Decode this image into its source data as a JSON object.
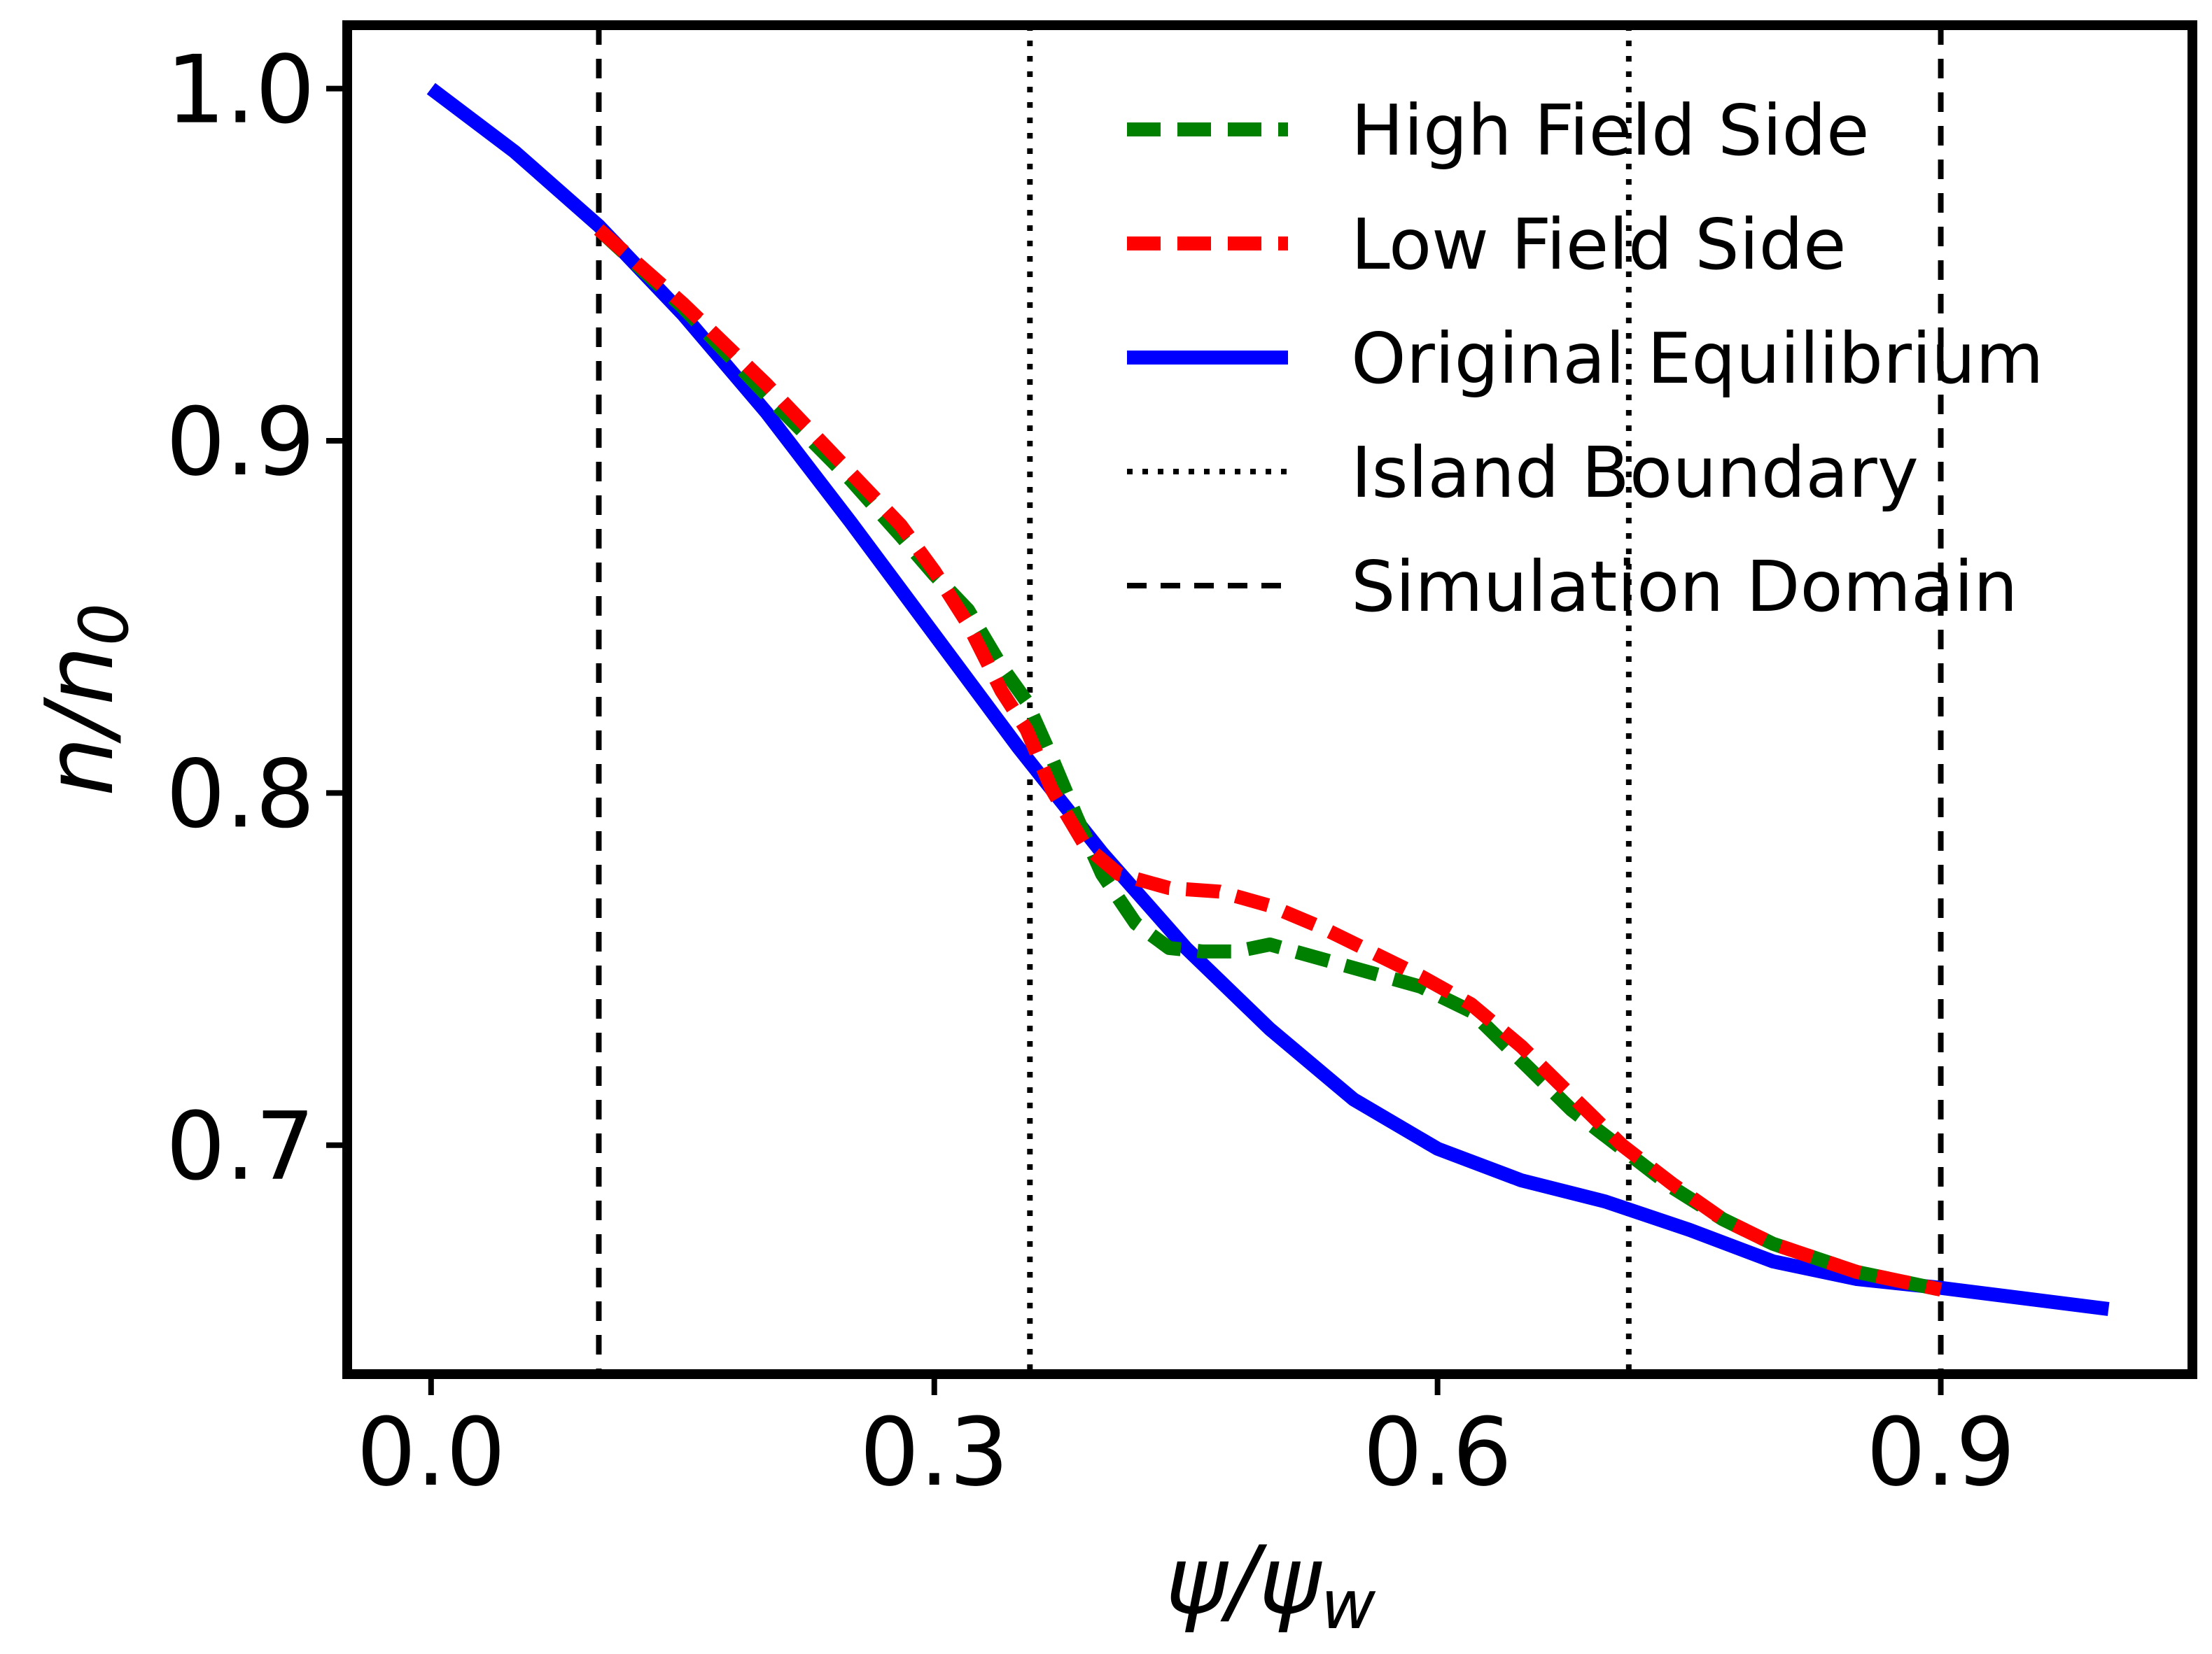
{
  "chart_data": {
    "type": "line",
    "title": "",
    "xlabel": "ψ/ψw",
    "ylabel": "n/n0",
    "xlabel_parts": {
      "base": "ψ/ψ",
      "sub": "w"
    },
    "ylabel_parts": {
      "base": "n/n",
      "sub": "0"
    },
    "xlim": [
      -0.05,
      1.05
    ],
    "ylim": [
      0.635,
      1.018
    ],
    "xticks": [
      0.0,
      0.3,
      0.6,
      0.9
    ],
    "xtick_labels": [
      "0.0",
      "0.3",
      "0.6",
      "0.9"
    ],
    "yticks": [
      0.7,
      0.8,
      0.9,
      1.0
    ],
    "ytick_labels": [
      "0.7",
      "0.8",
      "0.9",
      "1.0"
    ],
    "grid": false,
    "legend_position": "top-right",
    "series": [
      {
        "name": "High Field Side",
        "style": "dashed",
        "color": "#008000",
        "x": [
          0.1,
          0.15,
          0.2,
          0.25,
          0.28,
          0.3,
          0.32,
          0.34,
          0.355,
          0.37,
          0.385,
          0.4,
          0.42,
          0.44,
          0.46,
          0.48,
          0.5,
          0.53,
          0.56,
          0.59,
          0.62,
          0.65,
          0.68,
          0.71,
          0.74,
          0.77,
          0.8,
          0.85,
          0.9
        ],
        "y": [
          0.96,
          0.938,
          0.913,
          0.889,
          0.873,
          0.862,
          0.852,
          0.836,
          0.826,
          0.81,
          0.793,
          0.777,
          0.763,
          0.756,
          0.755,
          0.755,
          0.757,
          0.753,
          0.749,
          0.745,
          0.738,
          0.724,
          0.71,
          0.699,
          0.688,
          0.679,
          0.672,
          0.664,
          0.659
        ]
      },
      {
        "name": "Low Field Side",
        "style": "dashed",
        "color": "#ff0000",
        "x": [
          0.1,
          0.15,
          0.2,
          0.25,
          0.28,
          0.3,
          0.32,
          0.34,
          0.355,
          0.37,
          0.39,
          0.41,
          0.44,
          0.47,
          0.5,
          0.53,
          0.56,
          0.59,
          0.62,
          0.65,
          0.68,
          0.71,
          0.74,
          0.77,
          0.8,
          0.85,
          0.9
        ],
        "y": [
          0.96,
          0.939,
          0.916,
          0.891,
          0.876,
          0.863,
          0.848,
          0.829,
          0.818,
          0.801,
          0.785,
          0.777,
          0.773,
          0.772,
          0.768,
          0.762,
          0.755,
          0.748,
          0.74,
          0.728,
          0.714,
          0.7,
          0.689,
          0.679,
          0.672,
          0.664,
          0.659
        ]
      },
      {
        "name": "Original Equilibrium",
        "style": "solid",
        "color": "#0000ff",
        "x": [
          0.0,
          0.05,
          0.1,
          0.15,
          0.2,
          0.25,
          0.3,
          0.35,
          0.4,
          0.45,
          0.5,
          0.55,
          0.6,
          0.65,
          0.7,
          0.75,
          0.8,
          0.85,
          0.9,
          0.95,
          1.0
        ],
        "y": [
          1.0,
          0.982,
          0.961,
          0.936,
          0.908,
          0.877,
          0.845,
          0.813,
          0.783,
          0.756,
          0.733,
          0.713,
          0.699,
          0.69,
          0.684,
          0.676,
          0.667,
          0.662,
          0.6595,
          0.6565,
          0.6535
        ]
      }
    ],
    "vertical_lines": [
      {
        "name": "Simulation Domain",
        "style": "dashed",
        "x": 0.1
      },
      {
        "name": "Island Boundary",
        "style": "dotted",
        "x": 0.357
      },
      {
        "name": "Island Boundary",
        "style": "dotted",
        "x": 0.714
      },
      {
        "name": "Simulation Domain",
        "style": "dashed",
        "x": 0.9
      }
    ],
    "legend": [
      {
        "label": "High Field Side",
        "style": "dashed",
        "color": "#008000"
      },
      {
        "label": "Low Field Side",
        "style": "dashed",
        "color": "#ff0000"
      },
      {
        "label": "Original Equilibrium",
        "style": "solid",
        "color": "#0000ff"
      },
      {
        "label": "Island Boundary",
        "style": "dotted",
        "color": "#000000"
      },
      {
        "label": "Simulation Domain",
        "style": "dashed",
        "color": "#000000"
      }
    ]
  }
}
